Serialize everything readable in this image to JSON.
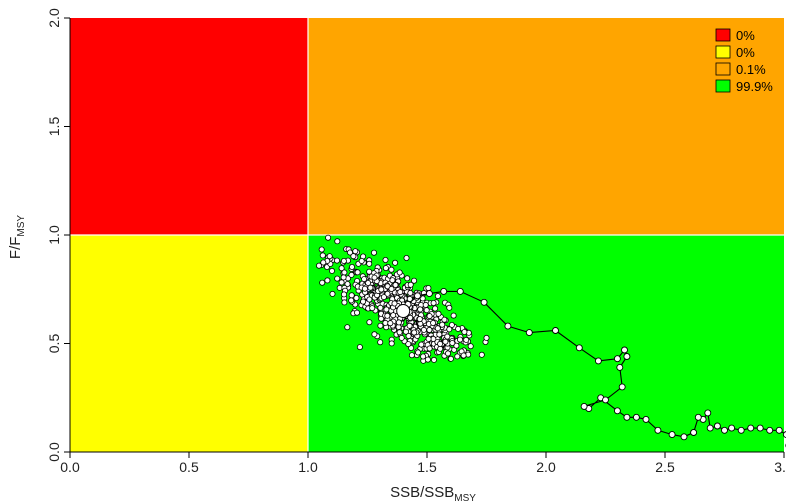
{
  "chart_data": {
    "type": "scatter",
    "title": "",
    "xlabel": {
      "main": "SSB/SSB",
      "sub": "MSY"
    },
    "ylabel": {
      "main": "F/F",
      "sub": "MSY"
    },
    "xlim": [
      0,
      3.0
    ],
    "ylim": [
      0,
      2.0
    ],
    "xticks": [
      "0.0",
      "0.5",
      "1.0",
      "1.5",
      "2.0",
      "2.5",
      "3.0"
    ],
    "yticks": [
      "0.0",
      "0.5",
      "1.0",
      "1.5",
      "2.0"
    ],
    "quadrants": [
      {
        "name": "overfished-overfishing",
        "x": [
          0,
          1
        ],
        "y": [
          1,
          2
        ],
        "color": "#ff0000"
      },
      {
        "name": "not-overfished-overfishing",
        "x": [
          1,
          3
        ],
        "y": [
          1,
          2
        ],
        "color": "#ffa500"
      },
      {
        "name": "overfished-no-overfishing",
        "x": [
          0,
          1
        ],
        "y": [
          0,
          1
        ],
        "color": "#ffff00"
      },
      {
        "name": "healthy",
        "x": [
          1,
          3
        ],
        "y": [
          0,
          1
        ],
        "color": "#00ff00"
      }
    ],
    "legend": {
      "position": "top-right",
      "entries": [
        {
          "label": "0%",
          "color": "#ff0000"
        },
        {
          "label": "0%",
          "color": "#ffff00"
        },
        {
          "label": "0.1%",
          "color": "#ffa500"
        },
        {
          "label": "99.9%",
          "color": "#00ff00"
        }
      ]
    },
    "trajectory": [
      [
        3.02,
        0.03
      ],
      [
        3.01,
        0.08
      ],
      [
        2.98,
        0.1
      ],
      [
        2.94,
        0.1
      ],
      [
        2.9,
        0.11
      ],
      [
        2.86,
        0.11
      ],
      [
        2.82,
        0.1
      ],
      [
        2.78,
        0.11
      ],
      [
        2.75,
        0.1
      ],
      [
        2.72,
        0.12
      ],
      [
        2.69,
        0.11
      ],
      [
        2.68,
        0.18
      ],
      [
        2.66,
        0.15
      ],
      [
        2.64,
        0.16
      ],
      [
        2.62,
        0.09
      ],
      [
        2.58,
        0.07
      ],
      [
        2.53,
        0.08
      ],
      [
        2.47,
        0.1
      ],
      [
        2.42,
        0.15
      ],
      [
        2.38,
        0.16
      ],
      [
        2.34,
        0.16
      ],
      [
        2.3,
        0.19
      ],
      [
        2.23,
        0.25
      ],
      [
        2.18,
        0.2
      ],
      [
        2.16,
        0.21
      ],
      [
        2.25,
        0.24
      ],
      [
        2.32,
        0.3
      ],
      [
        2.31,
        0.39
      ],
      [
        2.34,
        0.44
      ],
      [
        2.33,
        0.47
      ],
      [
        2.3,
        0.43
      ],
      [
        2.22,
        0.42
      ],
      [
        2.14,
        0.48
      ],
      [
        2.04,
        0.56
      ],
      [
        1.93,
        0.55
      ],
      [
        1.84,
        0.58
      ],
      [
        1.74,
        0.69
      ],
      [
        1.64,
        0.74
      ],
      [
        1.57,
        0.74
      ],
      [
        1.51,
        0.73
      ],
      [
        1.46,
        0.72
      ],
      [
        1.42,
        0.68
      ],
      [
        1.4,
        0.65
      ]
    ],
    "current_point": {
      "x": 1.4,
      "y": 0.65
    },
    "uncertainty_cloud": {
      "center": [
        1.4,
        0.65
      ],
      "n_points": 700,
      "x_range": [
        1.02,
        1.85
      ],
      "y_range": [
        0.42,
        1.08
      ]
    },
    "grid": false
  }
}
